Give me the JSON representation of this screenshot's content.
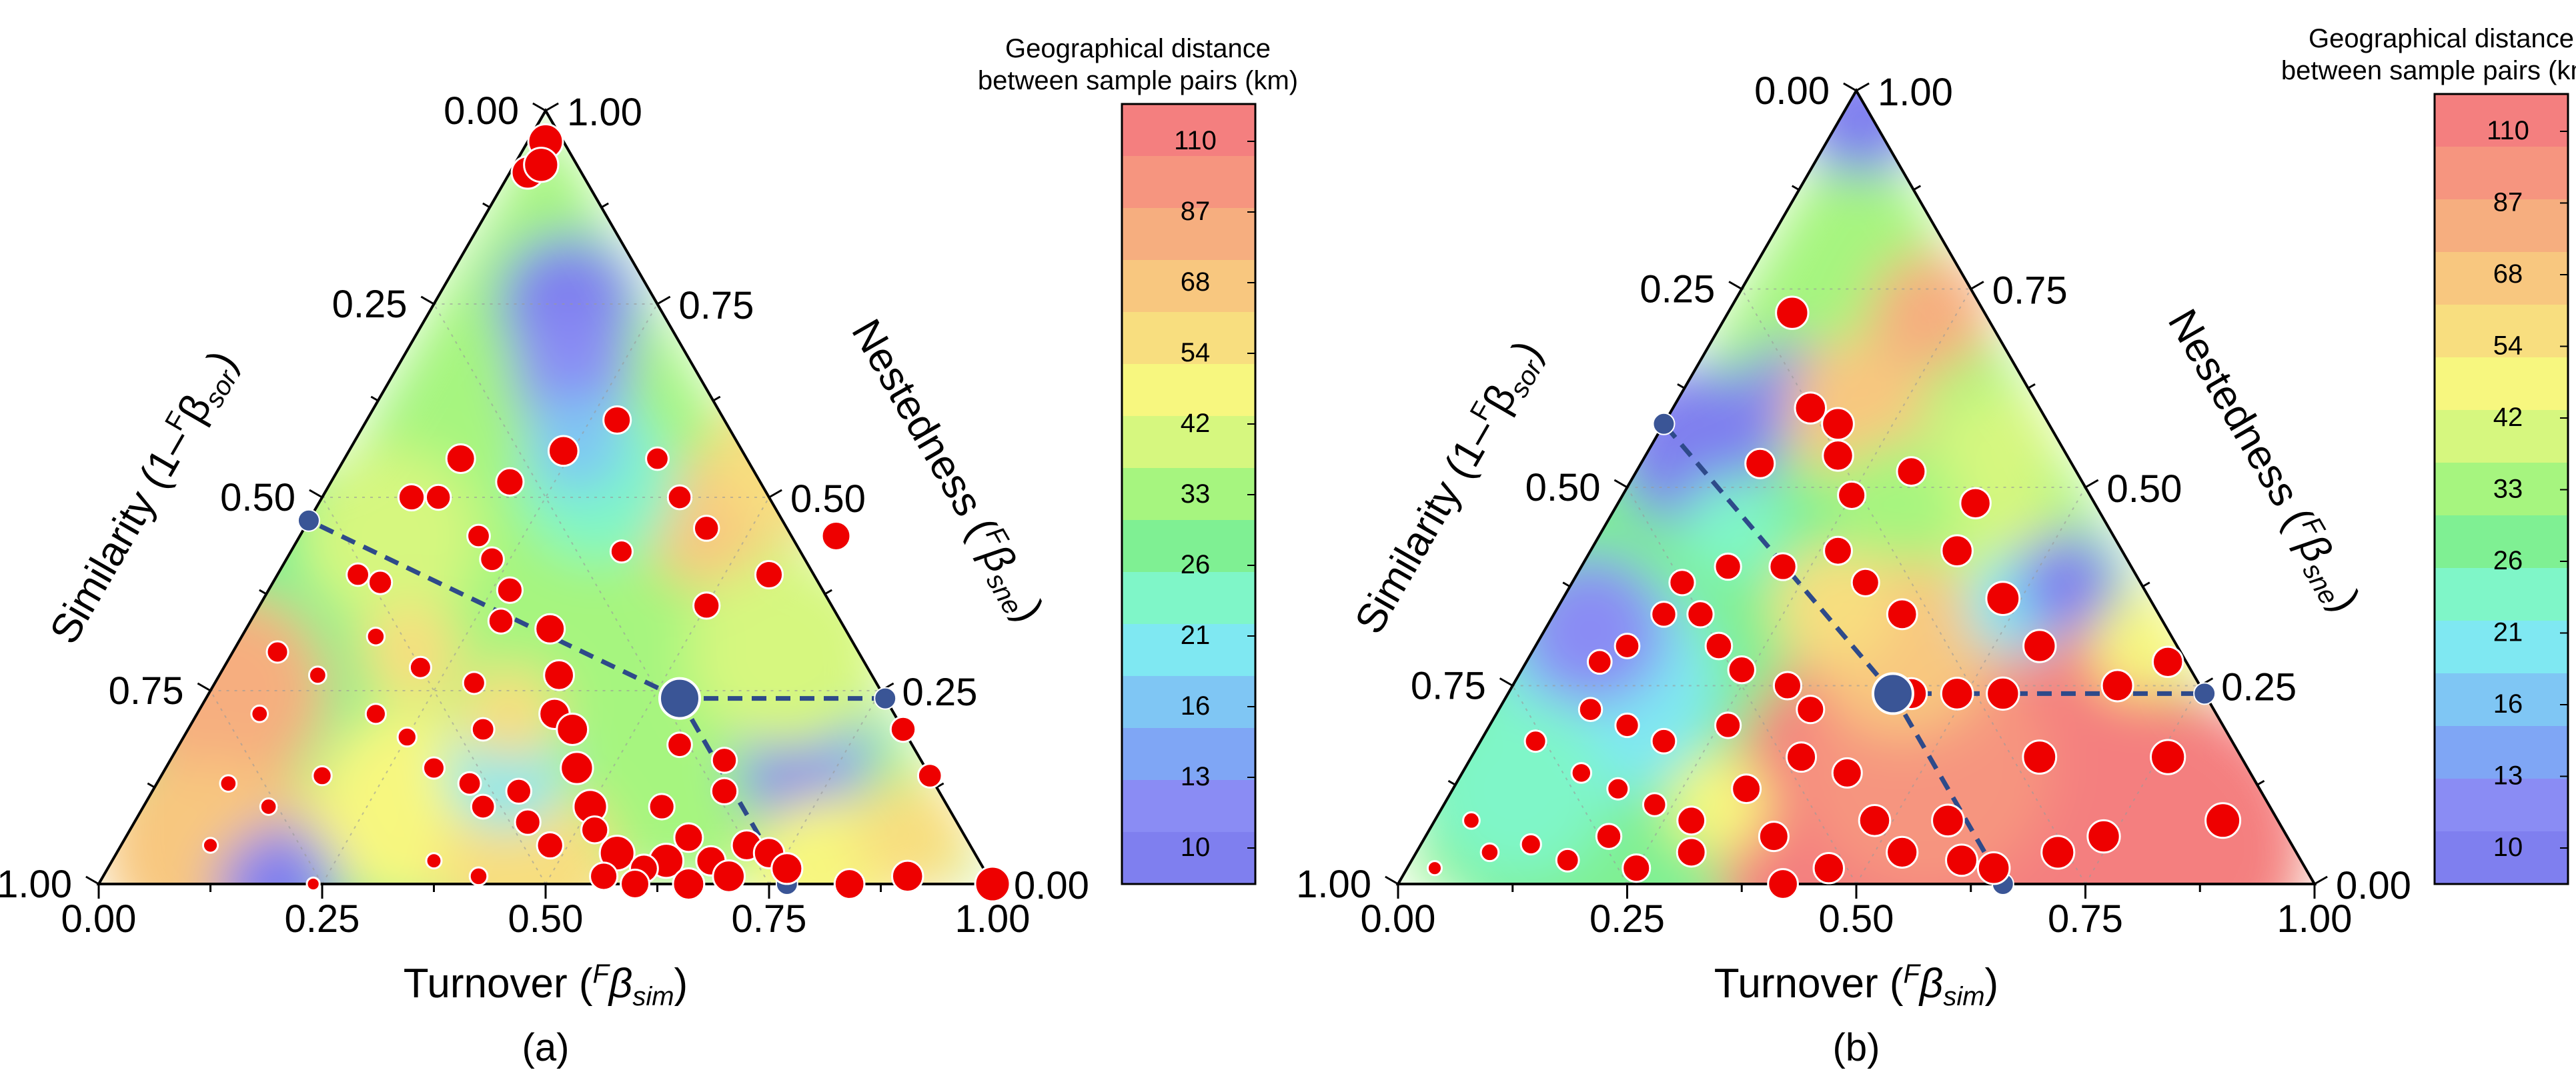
{
  "chart_data": [
    {
      "type": "scatter",
      "subtype": "ternary",
      "panel_label": "(a)",
      "axes": {
        "bottom": {
          "label": "Turnover",
          "label_sup": "F",
          "label_symbol": "β",
          "label_sub": "sim",
          "ticks": [
            "0.00",
            "0.25",
            "0.50",
            "0.75",
            "1.00"
          ]
        },
        "left": {
          "label": "Similarity",
          "label_prefix": "(1–",
          "label_sup": "F",
          "label_symbol": "β",
          "label_sub": "sor",
          "label_suffix": ")",
          "ticks": [
            "1.00",
            "0.75",
            "0.50",
            "0.25",
            "0.00"
          ]
        },
        "right": {
          "label": "Nestedness",
          "label_sup": "F",
          "label_symbol": "β",
          "label_sub": "sne",
          "ticks": [
            "0.00",
            "0.25",
            "0.50",
            "0.75",
            "1.00"
          ]
        }
      },
      "colorbar": {
        "title_line1": "Geographical distance",
        "title_line2": "between sample pairs (km)",
        "ticks": [
          "110",
          "87",
          "68",
          "54",
          "42",
          "33",
          "26",
          "21",
          "16",
          "13",
          "10"
        ]
      },
      "centroid": {
        "turnover": 0.53,
        "nestedness": 0.24,
        "similarity": 0.23
      },
      "points": [
        {
          "t": 0.02,
          "n": 0.96,
          "d": 110
        },
        {
          "t": 0.02,
          "n": 0.92,
          "d": 100
        },
        {
          "t": 0.03,
          "n": 0.93,
          "d": 108
        },
        {
          "t": 0.1,
          "n": 0.5,
          "d": 75
        },
        {
          "t": 0.09,
          "n": 0.4,
          "d": 60
        },
        {
          "t": 0.12,
          "n": 0.39,
          "d": 64
        },
        {
          "t": 0.13,
          "n": 0.55,
          "d": 85
        },
        {
          "t": 0.13,
          "n": 0.5,
          "d": 70
        },
        {
          "t": 0.2,
          "n": 0.52,
          "d": 80
        },
        {
          "t": 0.2,
          "n": 0.45,
          "d": 60
        },
        {
          "t": 0.23,
          "n": 0.42,
          "d": 65
        },
        {
          "t": 0.27,
          "n": 0.38,
          "d": 72
        },
        {
          "t": 0.28,
          "n": 0.34,
          "d": 70
        },
        {
          "t": 0.34,
          "n": 0.33,
          "d": 88
        },
        {
          "t": 0.38,
          "n": 0.27,
          "d": 90
        },
        {
          "t": 0.4,
          "n": 0.22,
          "d": 92
        },
        {
          "t": 0.43,
          "n": 0.2,
          "d": 96
        },
        {
          "t": 0.46,
          "n": 0.15,
          "d": 100
        },
        {
          "t": 0.5,
          "n": 0.1,
          "d": 105
        },
        {
          "t": 0.56,
          "n": 0.04,
          "d": 110
        },
        {
          "t": 0.62,
          "n": 0.03,
          "d": 108
        },
        {
          "t": 0.24,
          "n": 0.56,
          "d": 90
        },
        {
          "t": 0.28,
          "n": 0.6,
          "d": 80
        },
        {
          "t": 0.37,
          "n": 0.43,
          "d": 58
        },
        {
          "t": 0.29,
          "n": 0.26,
          "d": 58
        },
        {
          "t": 0.22,
          "n": 0.28,
          "d": 55
        },
        {
          "t": 0.2,
          "n": 0.22,
          "d": 50
        },
        {
          "t": 0.18,
          "n": 0.14,
          "d": 45
        },
        {
          "t": 0.14,
          "n": 0.1,
          "d": 35
        },
        {
          "t": 0.1,
          "n": 0.05,
          "d": 28
        },
        {
          "t": 0.08,
          "n": 0.13,
          "d": 35
        },
        {
          "t": 0.05,
          "n": 0.3,
          "d": 55
        },
        {
          "t": 0.25,
          "n": 0.19,
          "d": 45
        },
        {
          "t": 0.33,
          "n": 0.2,
          "d": 60
        },
        {
          "t": 0.3,
          "n": 0.15,
          "d": 55
        },
        {
          "t": 0.35,
          "n": 0.13,
          "d": 60
        },
        {
          "t": 0.38,
          "n": 0.1,
          "d": 65
        },
        {
          "t": 0.41,
          "n": 0.12,
          "d": 70
        },
        {
          "t": 0.44,
          "n": 0.08,
          "d": 72
        },
        {
          "t": 0.48,
          "n": 0.05,
          "d": 75
        },
        {
          "t": 0.52,
          "n": 0.07,
          "d": 78
        },
        {
          "t": 0.56,
          "n": 0.01,
          "d": 80
        },
        {
          "t": 0.6,
          "n": 0.02,
          "d": 82
        },
        {
          "t": 0.63,
          "n": 0.06,
          "d": 85
        },
        {
          "t": 0.67,
          "n": 0.03,
          "d": 88
        },
        {
          "t": 0.7,
          "n": 0.05,
          "d": 90
        },
        {
          "t": 0.73,
          "n": 0.04,
          "d": 92
        },
        {
          "t": 0.76,
          "n": 0.02,
          "d": 94
        },
        {
          "t": 0.66,
          "n": 0.0,
          "d": 96
        },
        {
          "t": 0.7,
          "n": 0.01,
          "d": 98
        },
        {
          "t": 0.6,
          "n": 0.0,
          "d": 85
        },
        {
          "t": 0.84,
          "n": 0.0,
          "d": 90
        },
        {
          "t": 0.9,
          "n": 0.01,
          "d": 95
        },
        {
          "t": 1.0,
          "n": 0.0,
          "d": 110
        },
        {
          "t": 0.86,
          "n": 0.14,
          "d": 65
        },
        {
          "t": 0.8,
          "n": 0.2,
          "d": 70
        },
        {
          "t": 0.5,
          "n": 0.36,
          "d": 75
        },
        {
          "t": 0.55,
          "n": 0.4,
          "d": 80
        },
        {
          "t": 0.6,
          "n": 0.45,
          "d": 85
        },
        {
          "t": 0.45,
          "n": 0.46,
          "d": 70
        },
        {
          "t": 0.4,
          "n": 0.5,
          "d": 65
        },
        {
          "t": 0.35,
          "n": 0.55,
          "d": 60
        },
        {
          "t": 0.62,
          "n": 0.16,
          "d": 70
        },
        {
          "t": 0.64,
          "n": 0.12,
          "d": 75
        },
        {
          "t": 0.58,
          "n": 0.1,
          "d": 72
        },
        {
          "t": 0.56,
          "n": 0.18,
          "d": 68
        },
        {
          "t": 0.24,
          "n": 0.0,
          "d": 20
        },
        {
          "t": 0.36,
          "n": 0.03,
          "d": 30
        },
        {
          "t": 0.42,
          "n": 0.01,
          "d": 40
        },
        {
          "t": 0.15,
          "n": 0.32,
          "d": 40
        },
        {
          "t": 0.11,
          "n": 0.27,
          "d": 38
        },
        {
          "t": 0.07,
          "n": 0.22,
          "d": 35
        }
      ]
    },
    {
      "type": "scatter",
      "subtype": "ternary",
      "panel_label": "(b)",
      "axes": {
        "bottom": {
          "label": "Turnover",
          "label_sup": "F",
          "label_symbol": "β",
          "label_sub": "sim",
          "ticks": [
            "0.00",
            "0.25",
            "0.50",
            "0.75",
            "1.00"
          ]
        },
        "left": {
          "label": "Similarity",
          "label_prefix": "(1–",
          "label_sup": "F",
          "label_symbol": "β",
          "label_sub": "sor",
          "label_suffix": ")",
          "ticks": [
            "1.00",
            "0.75",
            "0.50",
            "0.25",
            "0.00"
          ]
        },
        "right": {
          "label": "Nestedness",
          "label_sup": "F",
          "label_symbol": "β",
          "label_sub": "sne",
          "ticks": [
            "0.00",
            "0.25",
            "0.50",
            "0.75",
            "1.00"
          ]
        }
      },
      "colorbar": {
        "title_line1": "Geographical distance",
        "title_line2": "between sample pairs (km)",
        "ticks": [
          "110",
          "87",
          "68",
          "54",
          "42",
          "33",
          "26",
          "21",
          "16",
          "13",
          "10"
        ]
      },
      "centroid": {
        "turnover": 0.42,
        "nestedness": 0.24,
        "similarity": 0.34
      },
      "points": [
        {
          "t": 0.07,
          "n": 0.72,
          "d": 100
        },
        {
          "t": 0.15,
          "n": 0.6,
          "d": 95
        },
        {
          "t": 0.19,
          "n": 0.58,
          "d": 98
        },
        {
          "t": 0.21,
          "n": 0.54,
          "d": 92
        },
        {
          "t": 0.13,
          "n": 0.53,
          "d": 88
        },
        {
          "t": 0.3,
          "n": 0.52,
          "d": 85
        },
        {
          "t": 0.25,
          "n": 0.49,
          "d": 80
        },
        {
          "t": 0.39,
          "n": 0.48,
          "d": 92
        },
        {
          "t": 0.4,
          "n": 0.42,
          "d": 95
        },
        {
          "t": 0.48,
          "n": 0.36,
          "d": 104
        },
        {
          "t": 0.38,
          "n": 0.34,
          "d": 90
        },
        {
          "t": 0.32,
          "n": 0.38,
          "d": 80
        },
        {
          "t": 0.27,
          "n": 0.42,
          "d": 82
        },
        {
          "t": 0.22,
          "n": 0.4,
          "d": 78
        },
        {
          "t": 0.16,
          "n": 0.4,
          "d": 75
        },
        {
          "t": 0.12,
          "n": 0.38,
          "d": 72
        },
        {
          "t": 0.12,
          "n": 0.34,
          "d": 70
        },
        {
          "t": 0.1,
          "n": 0.3,
          "d": 68
        },
        {
          "t": 0.08,
          "n": 0.28,
          "d": 65
        },
        {
          "t": 0.16,
          "n": 0.34,
          "d": 75
        },
        {
          "t": 0.2,
          "n": 0.3,
          "d": 76
        },
        {
          "t": 0.24,
          "n": 0.27,
          "d": 78
        },
        {
          "t": 0.3,
          "n": 0.25,
          "d": 80
        },
        {
          "t": 0.1,
          "n": 0.22,
          "d": 62
        },
        {
          "t": 0.06,
          "n": 0.18,
          "d": 55
        },
        {
          "t": 0.15,
          "n": 0.2,
          "d": 64
        },
        {
          "t": 0.2,
          "n": 0.18,
          "d": 68
        },
        {
          "t": 0.26,
          "n": 0.2,
          "d": 72
        },
        {
          "t": 0.34,
          "n": 0.22,
          "d": 80
        },
        {
          "t": 0.42,
          "n": 0.14,
          "d": 88
        },
        {
          "t": 0.44,
          "n": 0.24,
          "d": 95
        },
        {
          "t": 0.49,
          "n": 0.24,
          "d": 98
        },
        {
          "t": 0.54,
          "n": 0.24,
          "d": 100
        },
        {
          "t": 0.62,
          "n": 0.16,
          "d": 104
        },
        {
          "t": 0.76,
          "n": 0.16,
          "d": 108
        },
        {
          "t": 0.86,
          "n": 0.08,
          "d": 110
        },
        {
          "t": 0.74,
          "n": 0.06,
          "d": 100
        },
        {
          "t": 0.7,
          "n": 0.04,
          "d": 102
        },
        {
          "t": 0.64,
          "n": 0.02,
          "d": 98
        },
        {
          "t": 0.6,
          "n": 0.03,
          "d": 96
        },
        {
          "t": 0.53,
          "n": 0.04,
          "d": 94
        },
        {
          "t": 0.46,
          "n": 0.02,
          "d": 92
        },
        {
          "t": 0.42,
          "n": 0.0,
          "d": 90
        },
        {
          "t": 0.48,
          "n": 0.08,
          "d": 95
        },
        {
          "t": 0.56,
          "n": 0.08,
          "d": 98
        },
        {
          "t": 0.38,
          "n": 0.06,
          "d": 88
        },
        {
          "t": 0.3,
          "n": 0.04,
          "d": 85
        },
        {
          "t": 0.25,
          "n": 0.02,
          "d": 80
        },
        {
          "t": 0.28,
          "n": 0.08,
          "d": 82
        },
        {
          "t": 0.32,
          "n": 0.12,
          "d": 85
        },
        {
          "t": 0.2,
          "n": 0.06,
          "d": 70
        },
        {
          "t": 0.17,
          "n": 0.03,
          "d": 60
        },
        {
          "t": 0.12,
          "n": 0.05,
          "d": 50
        },
        {
          "t": 0.08,
          "n": 0.04,
          "d": 40
        },
        {
          "t": 0.04,
          "n": 0.08,
          "d": 35
        },
        {
          "t": 0.03,
          "n": 0.02,
          "d": 25
        },
        {
          "t": 0.13,
          "n": 0.14,
          "d": 48
        },
        {
          "t": 0.18,
          "n": 0.12,
          "d": 55
        },
        {
          "t": 0.23,
          "n": 0.1,
          "d": 62
        },
        {
          "t": 0.36,
          "n": 0.16,
          "d": 88
        },
        {
          "t": 0.66,
          "n": 0.25,
          "d": 96
        },
        {
          "t": 0.7,
          "n": 0.28,
          "d": 92
        },
        {
          "t": 0.55,
          "n": 0.3,
          "d": 100
        }
      ]
    }
  ]
}
